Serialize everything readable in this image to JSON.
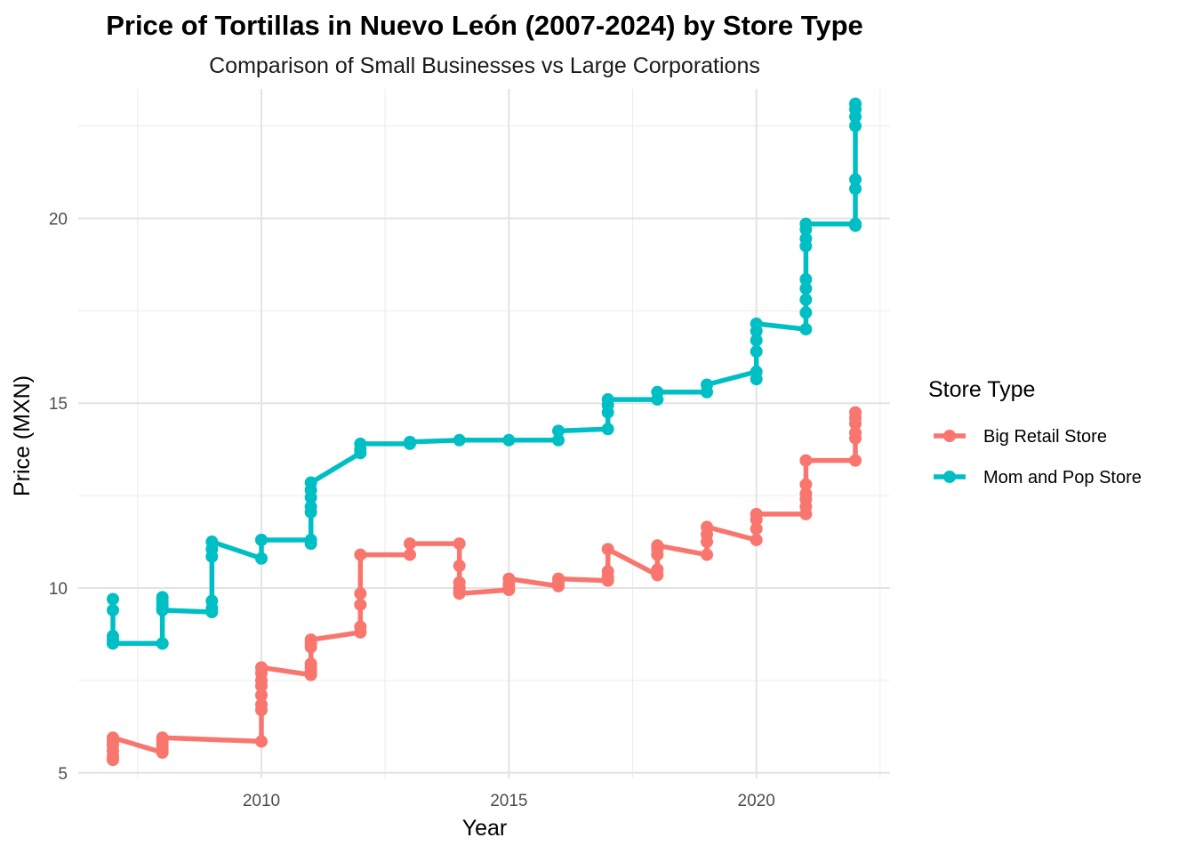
{
  "chart_data": {
    "type": "line",
    "title": "Price of Tortillas in Nuevo León (2007-2024) by Store Type",
    "subtitle": "Comparison of Small Businesses vs Large Corporations",
    "xlabel": "Year",
    "ylabel": "Price (MXN)",
    "xlim": [
      2006.3,
      2022.7
    ],
    "ylim": [
      4.85,
      23.5
    ],
    "x_ticks": [
      2010,
      2015,
      2020
    ],
    "x_tick_labels": [
      "2010",
      "2015",
      "2020"
    ],
    "y_ticks": [
      5,
      10,
      15,
      20
    ],
    "y_tick_labels": [
      "5",
      "10",
      "15",
      "20"
    ],
    "grid": true,
    "legend": {
      "title": "Store Type",
      "position": "right",
      "entries": [
        "Big Retail Store",
        "Mom and Pop Store"
      ]
    },
    "series": [
      {
        "name": "Big Retail Store",
        "color": "#F8766D",
        "x": [
          2007,
          2007,
          2007,
          2007,
          2007,
          2007,
          2008,
          2008,
          2008,
          2008,
          2008,
          2010,
          2010,
          2010,
          2010,
          2010,
          2010,
          2010,
          2010,
          2011,
          2011,
          2011,
          2011,
          2011,
          2011,
          2011,
          2012,
          2012,
          2012,
          2012,
          2012,
          2013,
          2013,
          2014,
          2014,
          2014,
          2014,
          2014,
          2014,
          2015,
          2015,
          2015,
          2015,
          2016,
          2016,
          2016,
          2017,
          2017,
          2017,
          2017,
          2018,
          2018,
          2018,
          2018,
          2018,
          2019,
          2019,
          2019,
          2019,
          2020,
          2020,
          2020,
          2020,
          2021,
          2021,
          2021,
          2021,
          2021,
          2021,
          2022,
          2022,
          2022,
          2022,
          2022,
          2022
        ],
        "y": [
          5.35,
          5.45,
          5.6,
          5.75,
          5.85,
          5.95,
          5.55,
          5.65,
          5.75,
          5.85,
          5.95,
          5.85,
          6.7,
          6.85,
          7.1,
          7.35,
          7.5,
          7.7,
          7.85,
          7.65,
          7.75,
          7.85,
          7.95,
          8.4,
          8.5,
          8.6,
          8.8,
          8.95,
          9.55,
          9.85,
          10.9,
          10.9,
          11.2,
          11.2,
          10.6,
          10.15,
          10.0,
          9.95,
          9.85,
          9.95,
          10.0,
          10.1,
          10.25,
          10.05,
          10.15,
          10.25,
          10.2,
          10.3,
          10.45,
          11.05,
          10.35,
          10.5,
          10.9,
          11.05,
          11.15,
          10.9,
          11.25,
          11.45,
          11.65,
          11.3,
          11.6,
          11.85,
          12.0,
          12.0,
          12.2,
          12.4,
          12.55,
          12.8,
          13.45,
          13.45,
          14.05,
          14.2,
          14.45,
          14.6,
          14.75
        ]
      },
      {
        "name": "Mom and Pop Store",
        "color": "#00BFC4",
        "x": [
          2007,
          2007,
          2007,
          2007,
          2007,
          2008,
          2008,
          2008,
          2008,
          2008,
          2008,
          2008,
          2009,
          2009,
          2009,
          2009,
          2009,
          2009,
          2010,
          2010,
          2010,
          2011,
          2011,
          2011,
          2011,
          2011,
          2011,
          2011,
          2012,
          2012,
          2012,
          2013,
          2013,
          2014,
          2015,
          2016,
          2016,
          2017,
          2017,
          2017,
          2017,
          2018,
          2018,
          2019,
          2019,
          2020,
          2020,
          2020,
          2020,
          2020,
          2020,
          2021,
          2021,
          2021,
          2021,
          2021,
          2021,
          2021,
          2021,
          2021,
          2022,
          2022,
          2022,
          2022,
          2022,
          2022,
          2022,
          2022
        ],
        "y": [
          9.7,
          9.4,
          8.7,
          8.6,
          8.5,
          8.5,
          8.5,
          9.45,
          9.55,
          9.65,
          9.75,
          9.4,
          9.35,
          9.45,
          9.65,
          10.85,
          11.05,
          11.25,
          10.8,
          11.3,
          11.3,
          11.3,
          11.2,
          12.05,
          12.2,
          12.45,
          12.65,
          12.85,
          13.65,
          13.75,
          13.9,
          13.9,
          13.95,
          14.0,
          14.0,
          14.0,
          14.25,
          14.3,
          14.75,
          14.95,
          15.1,
          15.1,
          15.3,
          15.3,
          15.5,
          15.85,
          15.65,
          16.4,
          16.7,
          16.95,
          17.15,
          17.0,
          17.45,
          17.8,
          18.1,
          18.35,
          19.25,
          19.45,
          19.7,
          19.85,
          19.85,
          19.8,
          20.8,
          21.05,
          22.5,
          22.75,
          22.95,
          23.1
        ]
      }
    ]
  }
}
